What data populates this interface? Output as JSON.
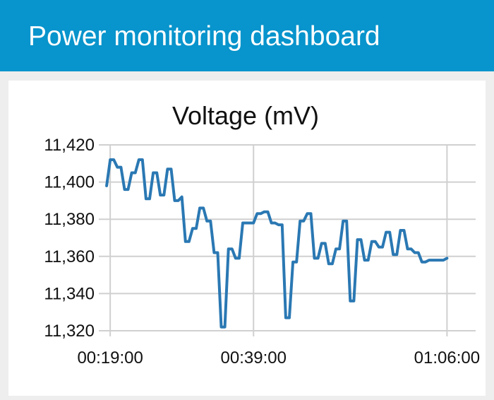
{
  "header": {
    "title": "Power monitoring dashboard",
    "background_color": "#0894cc"
  },
  "chart_data": {
    "type": "line",
    "title": "Voltage (mV)",
    "xlabel": "",
    "ylabel": "",
    "grid": true,
    "x_ticks": [
      "00:19:00",
      "00:39:00",
      "01:06:00"
    ],
    "y_ticks": [
      "11,320",
      "11,340",
      "11,360",
      "11,380",
      "11,400",
      "11,420"
    ],
    "xlim": [
      "00:18:00",
      "01:10:00"
    ],
    "ylim": [
      11320,
      11420
    ],
    "series": [
      {
        "color": "#2a78b3",
        "x": [
          "00:18:30",
          "00:19:00",
          "00:19:30",
          "00:20:00",
          "00:20:30",
          "00:21:00",
          "00:21:30",
          "00:22:00",
          "00:22:30",
          "00:23:00",
          "00:23:30",
          "00:24:00",
          "00:24:30",
          "00:25:00",
          "00:25:30",
          "00:26:00",
          "00:26:30",
          "00:27:00",
          "00:27:30",
          "00:28:00",
          "00:28:30",
          "00:29:00",
          "00:29:30",
          "00:30:00",
          "00:30:30",
          "00:31:00",
          "00:31:30",
          "00:32:00",
          "00:32:30",
          "00:33:00",
          "00:33:30",
          "00:34:00",
          "00:34:30",
          "00:35:00",
          "00:35:30",
          "00:36:00",
          "00:36:30",
          "00:37:00",
          "00:37:30",
          "00:38:00",
          "00:38:30",
          "00:39:00",
          "00:39:30",
          "00:40:00",
          "00:40:30",
          "00:41:00",
          "00:41:30",
          "00:42:00",
          "00:42:30",
          "00:43:00",
          "00:43:30",
          "00:44:00",
          "00:44:30",
          "00:45:00",
          "00:45:30",
          "00:46:00",
          "00:46:30",
          "00:47:00",
          "00:47:30",
          "00:48:00",
          "00:48:30",
          "00:49:00",
          "00:49:30",
          "00:50:00",
          "00:50:30",
          "00:51:00",
          "00:51:30",
          "00:52:00",
          "00:52:30",
          "00:53:00",
          "00:53:30",
          "00:54:00",
          "00:54:30",
          "00:55:00",
          "00:55:30",
          "00:56:00",
          "00:56:30",
          "00:57:00",
          "00:57:30",
          "00:58:00",
          "00:58:30",
          "00:59:00",
          "00:59:30",
          "01:00:00",
          "01:00:30",
          "01:01:00",
          "01:01:30",
          "01:02:00",
          "01:02:30",
          "01:03:00",
          "01:03:30",
          "01:04:00",
          "01:04:30",
          "01:05:00",
          "01:05:30",
          "01:06:00"
        ],
        "values": [
          11398,
          11412,
          11412,
          11408,
          11408,
          11396,
          11396,
          11405,
          11405,
          11412,
          11412,
          11391,
          11391,
          11405,
          11405,
          11393,
          11393,
          11407,
          11407,
          11390,
          11390,
          11392,
          11368,
          11368,
          11375,
          11375,
          11386,
          11386,
          11379,
          11379,
          11362,
          11362,
          11322,
          11322,
          11364,
          11364,
          11359,
          11359,
          11378,
          11378,
          11378,
          11378,
          11383,
          11383,
          11384,
          11384,
          11378,
          11378,
          11377,
          11377,
          11327,
          11327,
          11357,
          11357,
          11379,
          11379,
          11383,
          11383,
          11359,
          11359,
          11367,
          11367,
          11356,
          11356,
          11364,
          11364,
          11379,
          11379,
          11336,
          11336,
          11369,
          11369,
          11358,
          11358,
          11368,
          11368,
          11365,
          11365,
          11373,
          11373,
          11361,
          11361,
          11374,
          11374,
          11364,
          11364,
          11362,
          11362,
          11357,
          11357,
          11358,
          11358,
          11358,
          11358,
          11358,
          11359
        ]
      }
    ]
  }
}
